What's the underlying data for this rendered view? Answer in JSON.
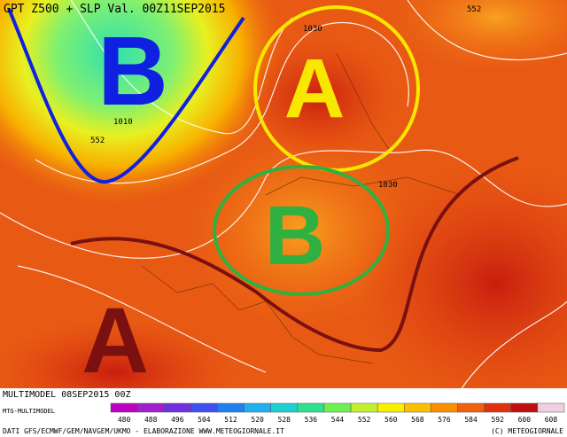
{
  "header": {
    "title": "GPT Z500 + SLP Val. 00Z11SEP2015"
  },
  "map": {
    "pressure_labels": [
      "1030",
      "1010",
      "552",
      "1030",
      "552"
    ],
    "systems": [
      "B",
      "A",
      "B",
      "A"
    ]
  },
  "footer": {
    "run": "MULTIMODEL 08SEP2015 00Z",
    "model": "MTG-MULTIMODEL",
    "sources": "DATI GFS/ECMWF/GEM/NAVGEM/UKMO - ELABORAZIONE WWW.METEOGIORNALE.IT",
    "copyright": "(C) METEOGIORNALE"
  },
  "colorbar": {
    "labels": [
      480,
      488,
      496,
      504,
      512,
      520,
      528,
      536,
      544,
      552,
      560,
      568,
      576,
      584,
      592,
      600,
      608
    ],
    "colors": [
      "#c000c0",
      "#a020d0",
      "#7030e0",
      "#4050f0",
      "#2080f0",
      "#20b0f0",
      "#20d0d0",
      "#30e090",
      "#70f050",
      "#c0f030",
      "#f8f000",
      "#f8c000",
      "#f89000",
      "#f06010",
      "#e03010",
      "#c01010",
      "#f0d0e0"
    ]
  }
}
